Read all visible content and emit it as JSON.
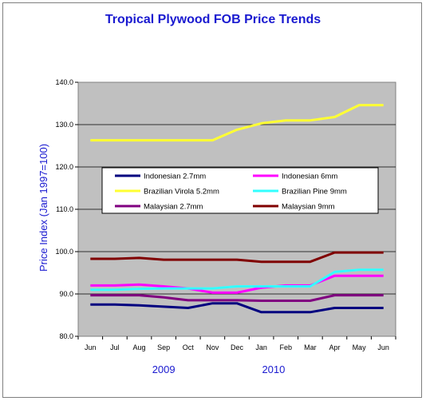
{
  "chart_data": {
    "type": "line",
    "title": "Tropical Plywood FOB Price Trends",
    "ylabel": "Price Index (Jan 1997=100)",
    "ylim": [
      80,
      140
    ],
    "yticks": [
      "80.0",
      "90.0",
      "100.0",
      "110.0",
      "120.0",
      "130.0",
      "140.0"
    ],
    "categories": [
      "Jun",
      "Jul",
      "Aug",
      "Sep",
      "Oct",
      "Nov",
      "Dec",
      "Jan",
      "Feb",
      "Mar",
      "Apr",
      "May",
      "Jun"
    ],
    "year_labels": [
      {
        "label": "2009",
        "category_index": 3
      },
      {
        "label": "2010",
        "category_index": 7.5
      }
    ],
    "grid": true,
    "legend_placement": "center",
    "series": [
      {
        "name": "Indonesian 2.7mm",
        "color": "#00007f",
        "values": [
          87.5,
          87.5,
          87.3,
          87.0,
          86.7,
          87.8,
          87.8,
          85.7,
          85.7,
          85.7,
          86.7,
          86.7,
          86.7
        ]
      },
      {
        "name": "Indonesian 6mm",
        "color": "#ff00ff",
        "values": [
          92.0,
          92.0,
          92.2,
          91.8,
          91.3,
          90.3,
          90.3,
          91.5,
          92.0,
          92.0,
          94.3,
          94.3,
          94.3
        ]
      },
      {
        "name": "Brazilian Virola 5.2mm",
        "color": "#ffff33",
        "values": [
          126.3,
          126.3,
          126.3,
          126.3,
          126.3,
          126.3,
          128.8,
          130.3,
          131.0,
          131.0,
          131.8,
          134.6,
          134.6
        ]
      },
      {
        "name": "Brazilian Pine 9mm",
        "color": "#33ffff",
        "values": [
          91.0,
          91.0,
          91.2,
          91.3,
          91.3,
          91.3,
          91.8,
          91.8,
          91.8,
          91.8,
          95.2,
          95.7,
          95.7
        ]
      },
      {
        "name": "Malaysian 2.7mm",
        "color": "#800080",
        "values": [
          89.7,
          89.7,
          89.7,
          89.2,
          88.5,
          88.5,
          88.5,
          88.4,
          88.4,
          88.4,
          89.7,
          89.7,
          89.7
        ]
      },
      {
        "name": "Malaysian 9mm",
        "color": "#800000",
        "values": [
          98.3,
          98.3,
          98.5,
          98.1,
          98.1,
          98.1,
          98.1,
          97.6,
          97.6,
          97.6,
          99.8,
          99.8,
          99.8
        ]
      }
    ]
  }
}
